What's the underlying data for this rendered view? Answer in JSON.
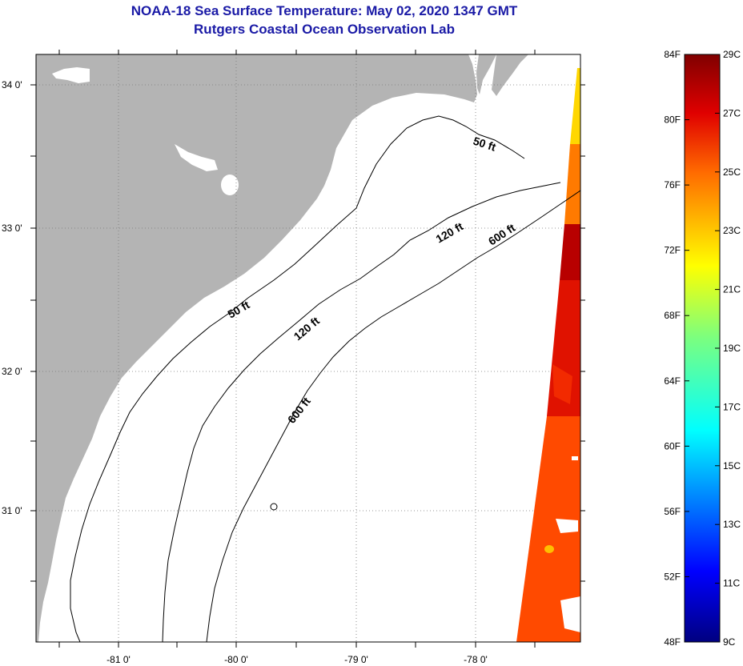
{
  "header": {
    "title": "NOAA-18 Sea Surface Temperature:  May 02, 2020 1347 GMT",
    "subtitle": "Rutgers Coastal Ocean Observation Lab"
  },
  "map": {
    "lat_labels": [
      "34 0'",
      "33 0'",
      "32 0'",
      "31 0'"
    ],
    "lon_labels": [
      "-81 0'",
      "-80 0'",
      "-79 0'",
      "-78 0'"
    ],
    "contour_labels": {
      "c50_north": "50 ft",
      "c50_south": "50 ft",
      "c120_north": "120 ft",
      "c120_south": "120 ft",
      "c600_north": "600 ft",
      "c600_south": "600 ft"
    },
    "colors": {
      "land": "#b4b4b4",
      "ocean": "#ffffff",
      "contour": "#000000",
      "title": "#1a1aa6"
    }
  },
  "colorbar": {
    "fahrenheit": [
      "84F",
      "80F",
      "76F",
      "72F",
      "68F",
      "64F",
      "60F",
      "56F",
      "52F",
      "48F"
    ],
    "celsius": [
      "29C",
      "27C",
      "25C",
      "23C",
      "21C",
      "19C",
      "17C",
      "15C",
      "13C",
      "11C",
      "9C"
    ]
  }
}
